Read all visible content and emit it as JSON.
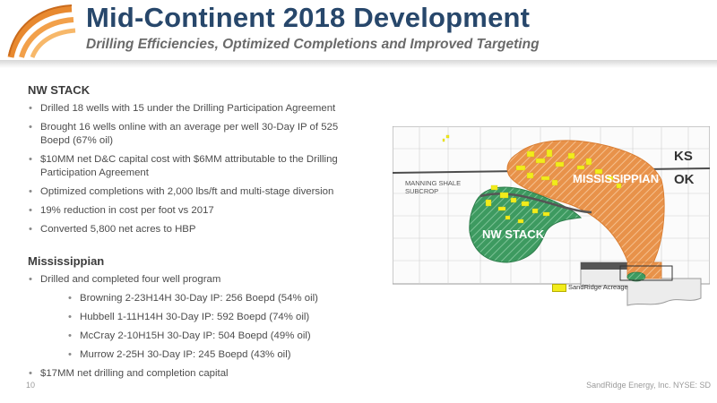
{
  "header": {
    "title": "Mid-Continent 2018 Development",
    "subtitle": "Drilling Efficiencies, Optimized Completions and Improved Targeting"
  },
  "sections": {
    "nw_stack": {
      "heading": "NW STACK",
      "bullets": [
        "Drilled 18 wells with 15 under the Drilling Participation Agreement",
        "Brought 16 wells online with an average per well 30-Day IP of 525 Boepd (67% oil)",
        "$10MM net D&C capital cost with $6MM attributable to the Drilling Participation Agreement",
        "Optimized completions with 2,000 lbs/ft and multi-stage diversion",
        "19% reduction in cost per foot vs 2017",
        "Converted 5,800 net acres to HBP"
      ]
    },
    "mississippian": {
      "heading": "Mississippian",
      "bullets": [
        "Drilled and completed four well program",
        "$17MM net drilling and completion capital"
      ],
      "sub_bullets": [
        "Browning 2-23H14H 30-Day IP: 256 Boepd (54% oil)",
        "Hubbell 1-11H14H 30-Day IP: 592 Boepd (74% oil)",
        "McCray 2-10H15H 30-Day IP: 504 Boepd (49% oil)",
        "Murrow 2-25H 30-Day IP: 245 Boepd (43% oil)"
      ]
    }
  },
  "map": {
    "labels": {
      "ks": "KS",
      "ok": "OK",
      "mississippian": "MISSISSIPPIAN",
      "nw_stack": "NW STACK",
      "manning_line1": "MANNING SHALE",
      "manning_line2": "SUBCROP"
    },
    "legend": "SandRidge Acreage",
    "colors": {
      "mississippian_fill": "#e8924a",
      "nw_stack_fill": "#3d9a60",
      "acreage": "#f2ec1c",
      "border": "#4d4d4d"
    }
  },
  "footer": {
    "page_number": "10",
    "company": "SandRidge Energy, Inc.  NYSE: SD"
  },
  "colors": {
    "title": "#27476b",
    "logo_orange": "#e8892f"
  }
}
